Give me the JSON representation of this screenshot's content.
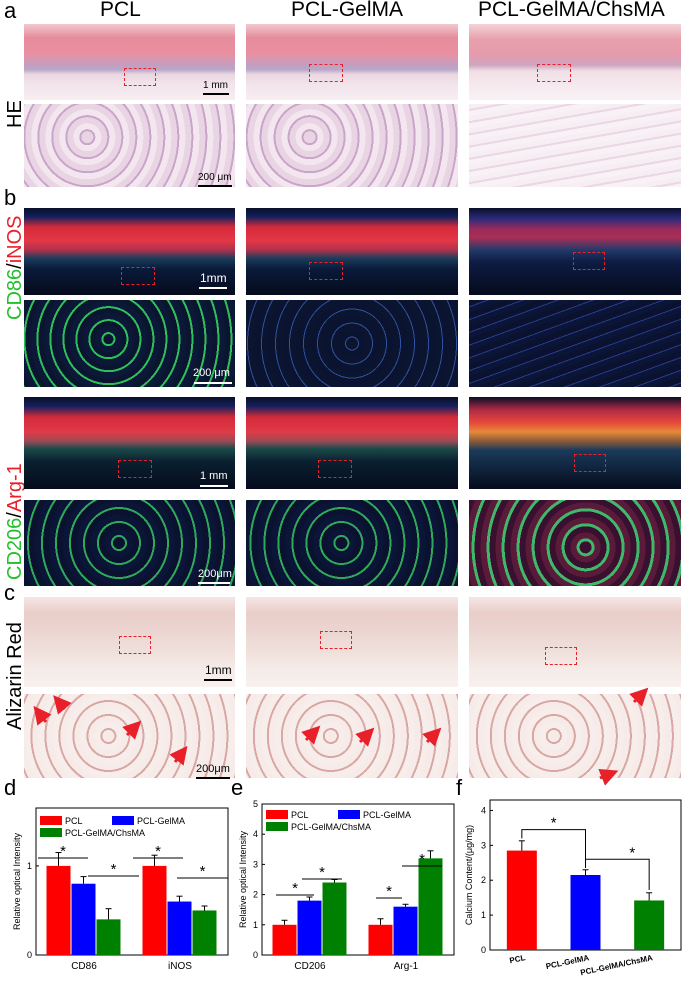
{
  "panel_letters": {
    "a": "a",
    "b": "b",
    "c": "c",
    "d": "d",
    "e": "e",
    "f": "f"
  },
  "column_headers": [
    "PCL",
    "PCL-GelMA",
    "PCL-GelMA/ChsMA"
  ],
  "row_labels": {
    "he": "HE",
    "cd86_green": "CD86",
    "cd86_sep": "/",
    "cd86_red": "iNOS",
    "cd206_green": "CD206",
    "cd206_sep": "/",
    "cd206_red": "Arg-1",
    "alizarin": "Alizarin Red"
  },
  "scale_bars": {
    "he_top": "1 mm",
    "he_zoom": "200 μm",
    "cd86_top": "1mm",
    "cd86_zoom": "200 μm",
    "cd206_top": "1 mm",
    "cd206_zoom": "200μm",
    "az_top": "1mm",
    "az_zoom": "200μm"
  },
  "colors": {
    "red": "#ff0000",
    "blue": "#0000ff",
    "green": "#008000",
    "roi": "#e8202a",
    "green_text": "#22c02a",
    "red_text": "#e8202a"
  },
  "chart_data": [
    {
      "type": "bar",
      "panel": "d",
      "categories": [
        "CD86",
        "iNOS"
      ],
      "series": [
        {
          "name": "PCL",
          "color": "#ff0000",
          "values": [
            1.0,
            1.0
          ],
          "errors": [
            0.15,
            0.12
          ]
        },
        {
          "name": "PCL-GelMA",
          "color": "#0000ff",
          "values": [
            0.8,
            0.6
          ],
          "errors": [
            0.08,
            0.06
          ]
        },
        {
          "name": "PCL-GelMA/ChsMA",
          "color": "#008000",
          "values": [
            0.4,
            0.5
          ],
          "errors": [
            0.12,
            0.05
          ]
        }
      ],
      "ylabel": "Relative optical Intensity",
      "ylim": [
        0,
        1.65
      ],
      "yticks": [
        "0",
        "1"
      ],
      "significance": [
        "*",
        "*",
        "*",
        "*"
      ],
      "legend": "top"
    },
    {
      "type": "bar",
      "panel": "e",
      "categories": [
        "CD206",
        "Arg-1"
      ],
      "series": [
        {
          "name": "PCL",
          "color": "#ff0000",
          "values": [
            1.0,
            1.0
          ],
          "errors": [
            0.15,
            0.2
          ]
        },
        {
          "name": "PCL-GelMA",
          "color": "#0000ff",
          "values": [
            1.8,
            1.6
          ],
          "errors": [
            0.12,
            0.08
          ]
        },
        {
          "name": "PCL-GelMA/ChsMA",
          "color": "#008000",
          "values": [
            2.4,
            3.2
          ],
          "errors": [
            0.1,
            0.25
          ]
        }
      ],
      "ylabel": "Relative optical Intensity",
      "ylim": [
        0,
        5
      ],
      "yticks": [
        "0",
        "1",
        "2",
        "3",
        "4",
        "5"
      ],
      "significance": [
        "*",
        "*",
        "*",
        "*"
      ],
      "legend": "top"
    },
    {
      "type": "bar",
      "panel": "f",
      "categories": [
        "PCL",
        "PCL-GelMA",
        "PCL-GelMA/ChsMA"
      ],
      "series": [
        {
          "colors": [
            "#ff0000",
            "#0000ff",
            "#008000"
          ],
          "values": [
            2.85,
            2.15,
            1.42
          ],
          "errors": [
            0.28,
            0.15,
            0.22
          ]
        }
      ],
      "ylabel": "Calcium Content/(μg/mg)",
      "ylim": [
        0,
        4.3
      ],
      "yticks": [
        "0",
        "1",
        "2",
        "3",
        "4"
      ],
      "significance": [
        "*",
        "*"
      ]
    }
  ]
}
